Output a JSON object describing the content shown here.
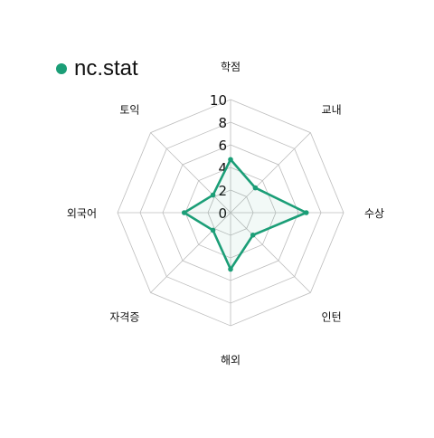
{
  "chart_data": {
    "type": "radar",
    "title": "",
    "axes": [
      "학점",
      "교내",
      "수상",
      "인턴",
      "해외",
      "자격증",
      "외국어",
      "토익"
    ],
    "rlim": [
      0,
      10
    ],
    "rticks": [
      "0",
      "2",
      "4",
      "6",
      "8",
      "10"
    ],
    "grid": true,
    "legend_position": "top-left",
    "series": [
      {
        "name": "nc.stat",
        "values": [
          4.7,
          3.1,
          6.7,
          2.8,
          5.0,
          2.2,
          4.1,
          2.2
        ],
        "color": "#1b9e77"
      }
    ]
  }
}
